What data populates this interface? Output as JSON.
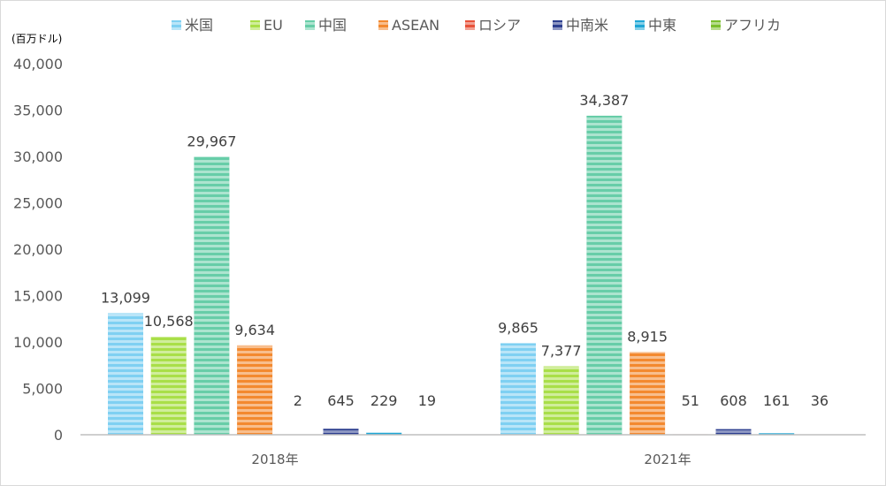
{
  "chart_data": {
    "type": "bar",
    "unit_label": "(百万ドル)",
    "categories": [
      "2018年",
      "2021年"
    ],
    "series": [
      {
        "name": "米国",
        "color": "#7fd0f2",
        "values": [
          13099,
          9865
        ],
        "labels": [
          "13,099",
          "9,865"
        ]
      },
      {
        "name": "EU",
        "color": "#a9df48",
        "values": [
          10568,
          7377
        ],
        "labels": [
          "10,568",
          "7,377"
        ]
      },
      {
        "name": "中国",
        "color": "#67cda8",
        "values": [
          29967,
          34387
        ],
        "labels": [
          "29,967",
          "34,387"
        ]
      },
      {
        "name": "ASEAN",
        "color": "#f3892f",
        "values": [
          9634,
          8915
        ],
        "labels": [
          "9,634",
          "8,915"
        ]
      },
      {
        "name": "ロシア",
        "color": "#e8523a",
        "values": [
          2,
          51
        ],
        "labels": [
          "2",
          "51"
        ]
      },
      {
        "name": "中南米",
        "color": "#2d3f8f",
        "values": [
          645,
          608
        ],
        "labels": [
          "645",
          "608"
        ]
      },
      {
        "name": "中東",
        "color": "#1fa7d6",
        "values": [
          229,
          161
        ],
        "labels": [
          "229",
          "161"
        ]
      },
      {
        "name": "アフリカ",
        "color": "#7bbf2e",
        "values": [
          19,
          36
        ],
        "labels": [
          "19",
          "36"
        ]
      }
    ],
    "ylim": [
      0,
      40000
    ],
    "yticks": [
      0,
      5000,
      10000,
      15000,
      20000,
      25000,
      30000,
      35000,
      40000
    ],
    "ytick_labels": [
      "0",
      "5,000",
      "10,000",
      "15,000",
      "20,000",
      "25,000",
      "30,000",
      "35,000",
      "40,000"
    ],
    "grid": false,
    "legend_position": "top"
  }
}
